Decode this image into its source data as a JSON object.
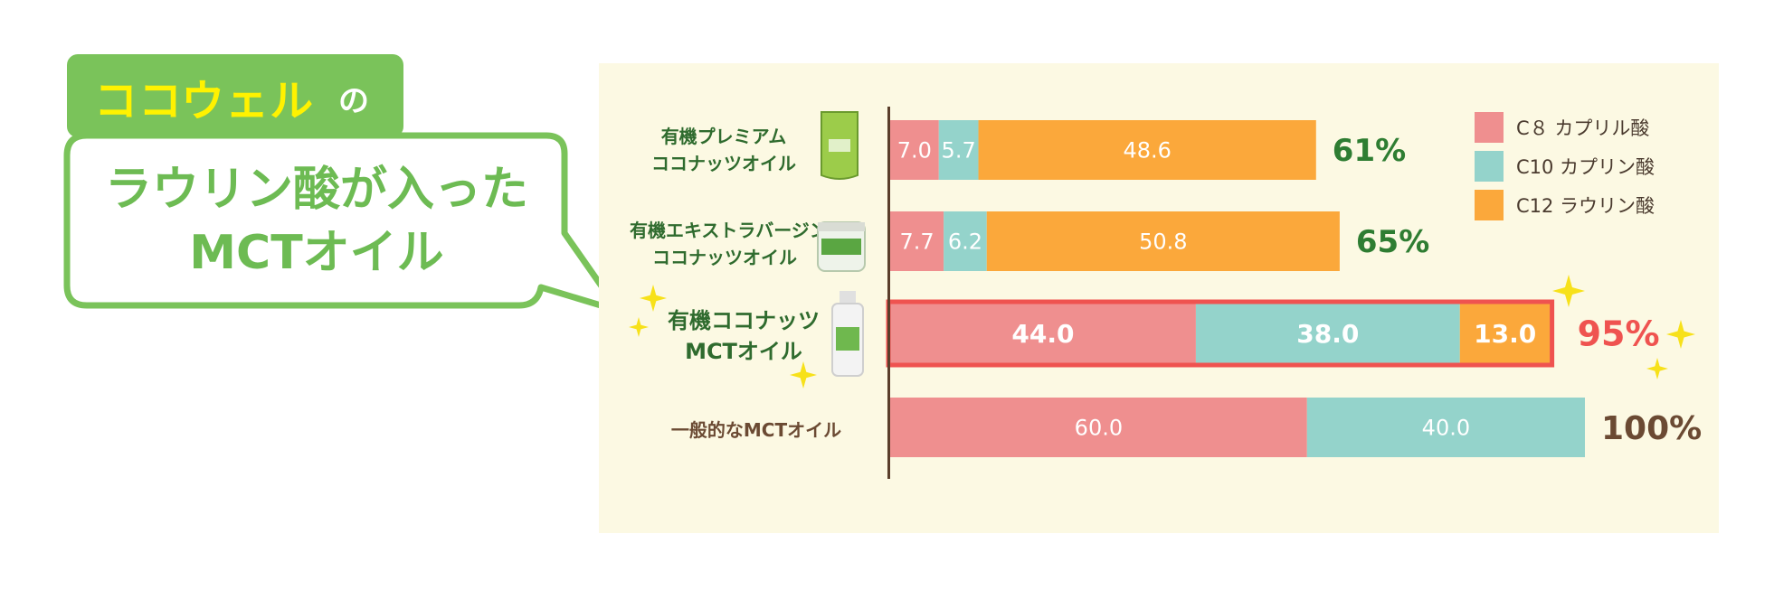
{
  "headline": {
    "tag_main": "ココウェル",
    "tag_particle": "の",
    "bubble_line1": "ラウリン酸が入った",
    "bubble_line2": "MCTオイル"
  },
  "chart_data": {
    "type": "bar",
    "orientation": "horizontal",
    "stacked": true,
    "categories": [
      {
        "line1": "有機プレミアム",
        "line2": "ココナッツオイル"
      },
      {
        "line1": "有機エキストラバージン",
        "line2": "ココナッツオイル"
      },
      {
        "line1": "有機ココナッツ",
        "line2": "MCTオイル"
      },
      {
        "line1": "一般的なMCTオイル",
        "line2": ""
      }
    ],
    "series": [
      {
        "name": "C８ カプリル酸",
        "color": "#ef8f8f",
        "values": [
          7.0,
          7.7,
          44.0,
          60.0
        ],
        "labels": [
          "7.0",
          "7.7",
          "44.0",
          "60.0"
        ]
      },
      {
        "name": "C10 カプリン酸",
        "color": "#94d3cb",
        "values": [
          5.7,
          6.2,
          38.0,
          40.0
        ],
        "labels": [
          "5.7",
          "6.2",
          "38.0",
          "40.0"
        ]
      },
      {
        "name": "C12 ラウリン酸",
        "color": "#fba83b",
        "values": [
          48.6,
          50.8,
          13.0,
          0
        ],
        "labels": [
          "48.6",
          "50.8",
          "13.0",
          ""
        ]
      }
    ],
    "totals": [
      "61%",
      "65%",
      "95%",
      "100%"
    ],
    "total_colors": [
      "#2e7d32",
      "#2e7d32",
      "#ef5350",
      "#6b4a33"
    ],
    "highlight_category": 2,
    "highlight_color": "#ef5350",
    "xlim": [
      0,
      100
    ],
    "legend_position": "top-right"
  }
}
